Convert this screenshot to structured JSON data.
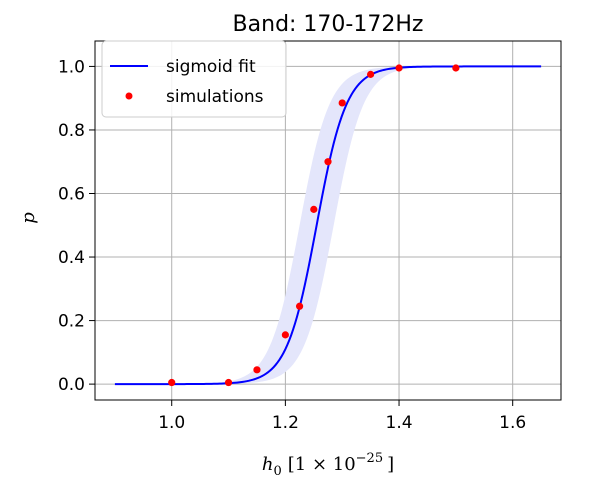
{
  "chart_data": {
    "type": "line",
    "title": "Band: 170-172Hz",
    "xlabel_base": "h",
    "xlabel_sub": "0",
    "xlabel_unit": "[1 × 10",
    "xlabel_exp": "−25",
    "xlabel_close": "]",
    "ylabel": "p",
    "xlim": [
      0.865,
      1.685
    ],
    "ylim": [
      -0.05,
      1.08
    ],
    "xticks": [
      1.0,
      1.2,
      1.4,
      1.6
    ],
    "xtick_labels": [
      "1.0",
      "1.2",
      "1.4",
      "1.6"
    ],
    "yticks": [
      0.0,
      0.2,
      0.4,
      0.6,
      0.8,
      1.0
    ],
    "ytick_labels": [
      "0.0",
      "0.2",
      "0.4",
      "0.6",
      "0.8",
      "1.0"
    ],
    "grid": true,
    "legend_position": "top-left",
    "series": [
      {
        "name": "sigmoid fit",
        "kind": "line",
        "color": "#0000ff",
        "band_color": "#e4e6fb",
        "model": "logistic",
        "x0": 1.255,
        "k": 38,
        "band_halfwidth": 0.03,
        "x_range": [
          0.9,
          1.65
        ]
      },
      {
        "name": "simulations",
        "kind": "scatter",
        "color": "#ff0000",
        "x": [
          1.0,
          1.1,
          1.15,
          1.2,
          1.225,
          1.25,
          1.275,
          1.3,
          1.35,
          1.4,
          1.5
        ],
        "y": [
          0.005,
          0.005,
          0.045,
          0.155,
          0.245,
          0.55,
          0.7,
          0.885,
          0.975,
          0.995,
          0.995
        ]
      }
    ]
  }
}
